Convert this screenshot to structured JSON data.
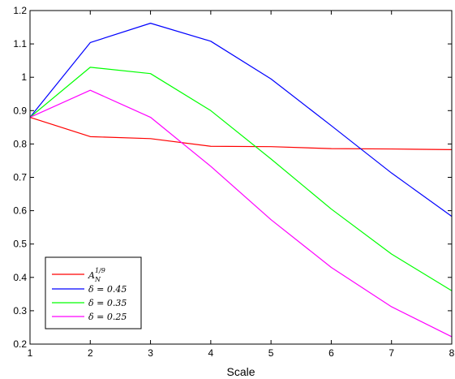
{
  "chart_data": {
    "type": "line",
    "xlabel": "Scale",
    "ylabel": "",
    "title": "",
    "xlim": [
      1,
      8
    ],
    "ylim": [
      0.2,
      1.2
    ],
    "x_ticks": [
      "1",
      "2",
      "3",
      "4",
      "5",
      "6",
      "7",
      "8"
    ],
    "y_ticks": [
      "0.2",
      "0.3",
      "0.4",
      "0.5",
      "0.6",
      "0.7",
      "0.8",
      "0.9",
      "1",
      "1.1",
      "1.2"
    ],
    "grid": false,
    "legend_position": "bottom-left",
    "x": [
      1,
      2,
      3,
      4,
      5,
      6,
      7,
      8
    ],
    "series": [
      {
        "name": "A_N^{1/9}",
        "color": "#ff0000",
        "values": [
          0.88,
          0.822,
          0.816,
          0.793,
          0.792,
          0.786,
          0.785,
          0.783
        ]
      },
      {
        "name": "δ = 0.45",
        "color": "#0000ff",
        "values": [
          0.88,
          1.104,
          1.162,
          1.108,
          0.995,
          0.855,
          0.713,
          0.583
        ]
      },
      {
        "name": "δ = 0.35",
        "color": "#00ff00",
        "values": [
          0.88,
          1.03,
          1.011,
          0.9,
          0.755,
          0.605,
          0.47,
          0.36
        ]
      },
      {
        "name": "δ = 0.25",
        "color": "#ff00ff",
        "values": [
          0.88,
          0.961,
          0.88,
          0.733,
          0.573,
          0.43,
          0.312,
          0.222
        ]
      }
    ],
    "legend_labels": {
      "s0_main": "A",
      "s0_sub": "N",
      "s0_sup": "1/9",
      "s1": "δ = 0.45",
      "s2": "δ = 0.35",
      "s3": "δ = 0.25"
    }
  }
}
